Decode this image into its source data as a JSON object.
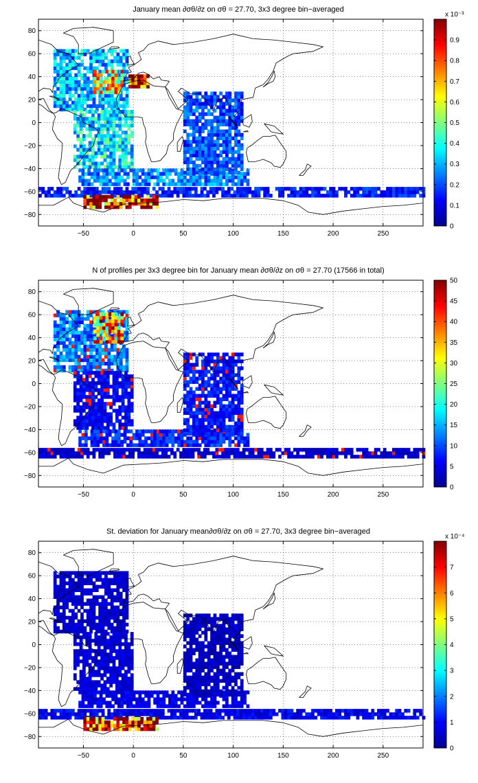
{
  "figure": {
    "panels_count": 3
  },
  "chart_data": [
    {
      "type": "heatmap",
      "title": "January mean ∂σθ/∂z on σθ = 27.70, 3x3 degree bin−averaged",
      "xlabel": "",
      "ylabel": "",
      "xlim": [
        -95,
        290
      ],
      "ylim": [
        -90,
        90
      ],
      "xticks": [
        -50,
        0,
        50,
        100,
        150,
        200,
        250
      ],
      "xtick_labels": [
        "−50",
        "0",
        "50",
        "100",
        "150",
        "200",
        "250"
      ],
      "yticks": [
        80,
        60,
        40,
        20,
        0,
        -20,
        -40,
        -60,
        -80
      ],
      "ytick_labels": [
        "80",
        "60",
        "40",
        "20",
        "0",
        "−20",
        "−40",
        "−60",
        "−80"
      ],
      "grid": true,
      "colormap": "jet",
      "colorbar": {
        "range": [
          0,
          1
        ],
        "ticks": [
          0,
          0.1,
          0.2,
          0.3,
          0.4,
          0.5,
          0.6,
          0.7,
          0.8,
          0.9
        ],
        "tick_labels": [
          "0",
          "0.1",
          "0.2",
          "0.3",
          "0.4",
          "0.5",
          "0.6",
          "0.7",
          "0.8",
          "0.9"
        ],
        "scale_label": "x 10⁻³"
      },
      "regions": [
        {
          "lon": [
            -80,
            -5
          ],
          "lat": [
            10,
            62
          ],
          "value": 0.3
        },
        {
          "lon": [
            -40,
            -10
          ],
          "lat": [
            25,
            45
          ],
          "value": 0.65
        },
        {
          "lon": [
            -60,
            0
          ],
          "lat": [
            -40,
            10
          ],
          "value": 0.35
        },
        {
          "lon": [
            -55,
            115
          ],
          "lat": [
            -55,
            -40
          ],
          "value": 0.25
        },
        {
          "lon": [
            50,
            110
          ],
          "lat": [
            -45,
            25
          ],
          "value": 0.2
        },
        {
          "lon": [
            -95,
            290
          ],
          "lat": [
            -65,
            -57
          ],
          "value": 0.15
        },
        {
          "lon": [
            -50,
            25
          ],
          "lat": [
            -75,
            -65
          ],
          "value": 0.95
        },
        {
          "lon": [
            -5,
            15
          ],
          "lat": [
            30,
            40
          ],
          "value": 0.95
        }
      ]
    },
    {
      "type": "heatmap",
      "title": "N of profiles per 3x3 degree bin for January mean ∂σθ/∂z on σθ = 27.70 (17566 in total)",
      "xlabel": "",
      "ylabel": "",
      "xlim": [
        -95,
        290
      ],
      "ylim": [
        -90,
        90
      ],
      "xticks": [
        -50,
        0,
        50,
        100,
        150,
        200,
        250
      ],
      "xtick_labels": [
        "−50",
        "0",
        "50",
        "100",
        "150",
        "200",
        "250"
      ],
      "yticks": [
        80,
        60,
        40,
        20,
        0,
        -20,
        -40,
        -60,
        -80
      ],
      "ytick_labels": [
        "80",
        "60",
        "40",
        "20",
        "0",
        "−20",
        "−40",
        "−60",
        "−80"
      ],
      "grid": true,
      "colormap": "jet",
      "total_profiles": 17566,
      "colorbar": {
        "range": [
          0,
          50
        ],
        "ticks": [
          0,
          5,
          10,
          15,
          20,
          25,
          30,
          35,
          40,
          45,
          50
        ],
        "tick_labels": [
          "0",
          "5",
          "10",
          "15",
          "20",
          "25",
          "30",
          "35",
          "40",
          "45",
          "50"
        ],
        "scale_label": ""
      },
      "regions": [
        {
          "lon": [
            -80,
            -5
          ],
          "lat": [
            10,
            62
          ],
          "value": 12
        },
        {
          "lon": [
            -40,
            -10
          ],
          "lat": [
            35,
            60
          ],
          "value": 35
        },
        {
          "lon": [
            -60,
            0
          ],
          "lat": [
            -40,
            10
          ],
          "value": 6
        },
        {
          "lon": [
            -55,
            115
          ],
          "lat": [
            -55,
            -40
          ],
          "value": 8
        },
        {
          "lon": [
            50,
            110
          ],
          "lat": [
            -45,
            25
          ],
          "value": 7
        },
        {
          "lon": [
            -95,
            290
          ],
          "lat": [
            -65,
            -57
          ],
          "value": 4
        }
      ]
    },
    {
      "type": "heatmap",
      "title": "St. deviation for January mean∂σθ/∂z on σθ = 27.70, 3x3 degree bin−averaged",
      "xlabel": "",
      "ylabel": "",
      "xlim": [
        -95,
        290
      ],
      "ylim": [
        -90,
        90
      ],
      "xticks": [
        -50,
        0,
        50,
        100,
        150,
        200,
        250
      ],
      "xtick_labels": [
        "−50",
        "0",
        "50",
        "100",
        "150",
        "200",
        "250"
      ],
      "yticks": [
        80,
        60,
        40,
        20,
        0,
        -20,
        -40,
        -60,
        -80
      ],
      "ytick_labels": [
        "80",
        "60",
        "40",
        "20",
        "0",
        "−20",
        "−40",
        "−60",
        "−80"
      ],
      "grid": true,
      "colormap": "jet",
      "colorbar": {
        "range": [
          0,
          8
        ],
        "ticks": [
          0,
          1,
          2,
          3,
          4,
          5,
          6,
          7
        ],
        "tick_labels": [
          "0",
          "1",
          "2",
          "3",
          "4",
          "5",
          "6",
          "7"
        ],
        "scale_label": "x 10⁻⁴"
      },
      "regions": [
        {
          "lon": [
            -80,
            -5
          ],
          "lat": [
            10,
            62
          ],
          "value": 0.6
        },
        {
          "lon": [
            -60,
            0
          ],
          "lat": [
            -40,
            10
          ],
          "value": 0.7
        },
        {
          "lon": [
            -55,
            115
          ],
          "lat": [
            -55,
            -40
          ],
          "value": 0.8
        },
        {
          "lon": [
            50,
            110
          ],
          "lat": [
            -45,
            25
          ],
          "value": 0.5
        },
        {
          "lon": [
            -95,
            290
          ],
          "lat": [
            -65,
            -57
          ],
          "value": 0.9
        },
        {
          "lon": [
            -50,
            25
          ],
          "lat": [
            -75,
            -65
          ],
          "value": 7.5
        }
      ]
    }
  ]
}
